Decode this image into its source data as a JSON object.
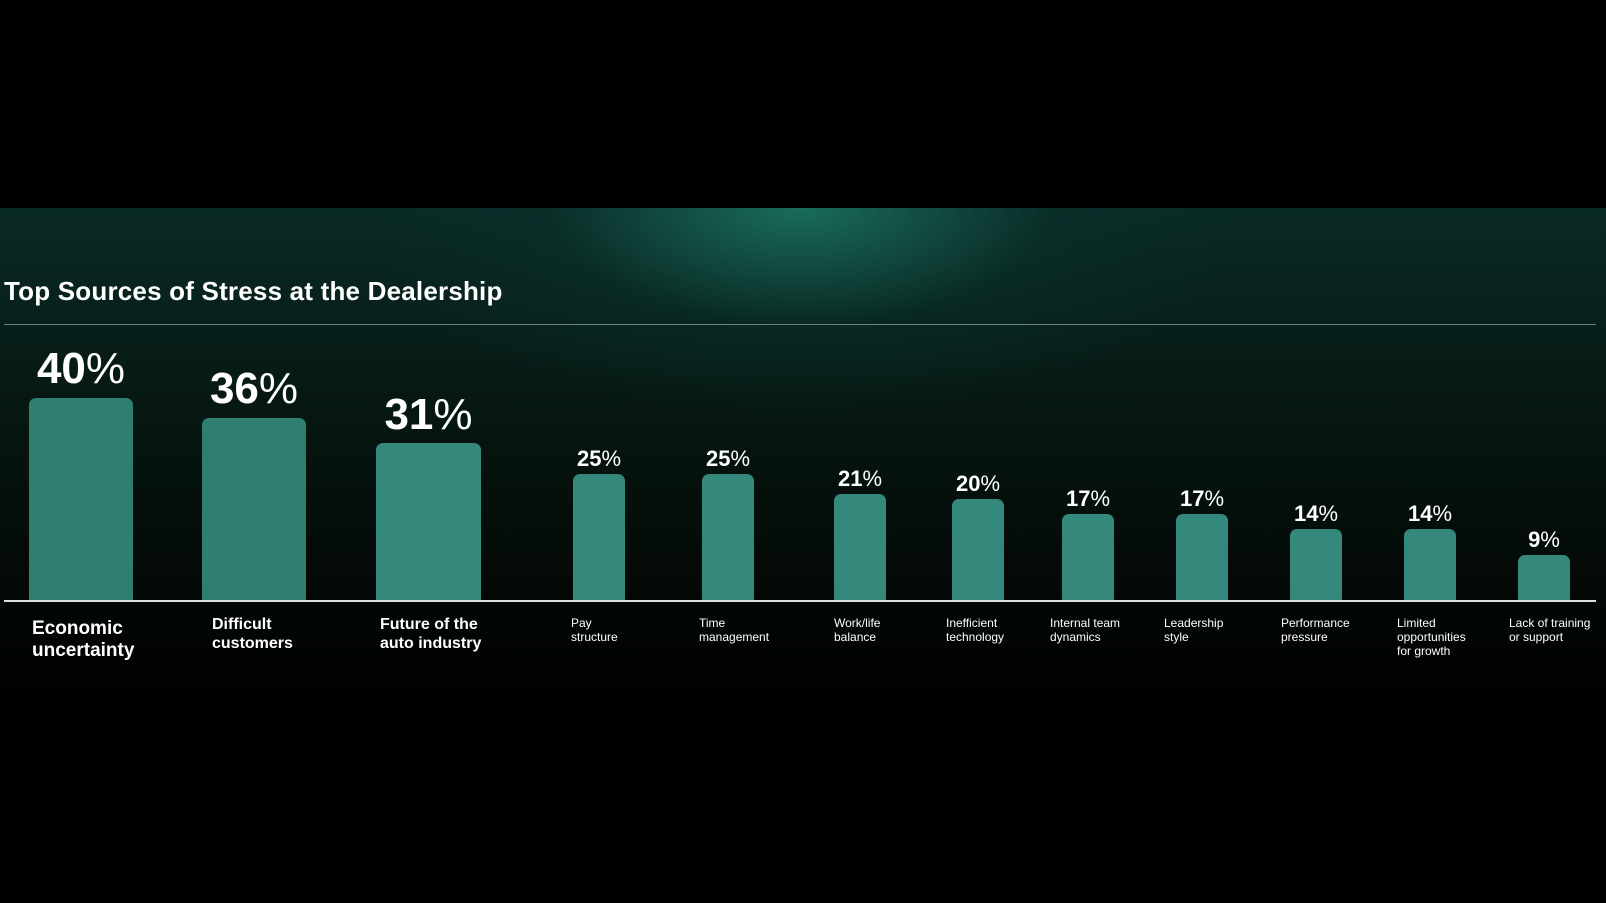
{
  "title": "Top Sources of Stress at the Dealership",
  "colors": {
    "bar_top": "#2f7e71",
    "bar": "#35897c",
    "text": "#ffffff",
    "baseline": "#d9dfdd"
  },
  "chart_data": {
    "type": "bar",
    "title": "Top Sources of Stress at the Dealership",
    "xlabel": "",
    "ylabel": "",
    "value_suffix": "%",
    "grid": false,
    "ylim": [
      0,
      40
    ],
    "categories": [
      "Economic\nuncertainty",
      "Difficult\ncustomers",
      "Future of the\nauto industry",
      "Pay\nstructure",
      "Time\nmanagement",
      "Work/life\nbalance",
      "Inefficient\ntechnology",
      "Internal team\ndynamics",
      "Leadership\nstyle",
      "Performance\npressure",
      "Limited\nopportunities\nfor growth",
      "Lack of training\nor support"
    ],
    "values": [
      40,
      36,
      31,
      25,
      25,
      21,
      20,
      17,
      17,
      14,
      14,
      9
    ]
  }
}
